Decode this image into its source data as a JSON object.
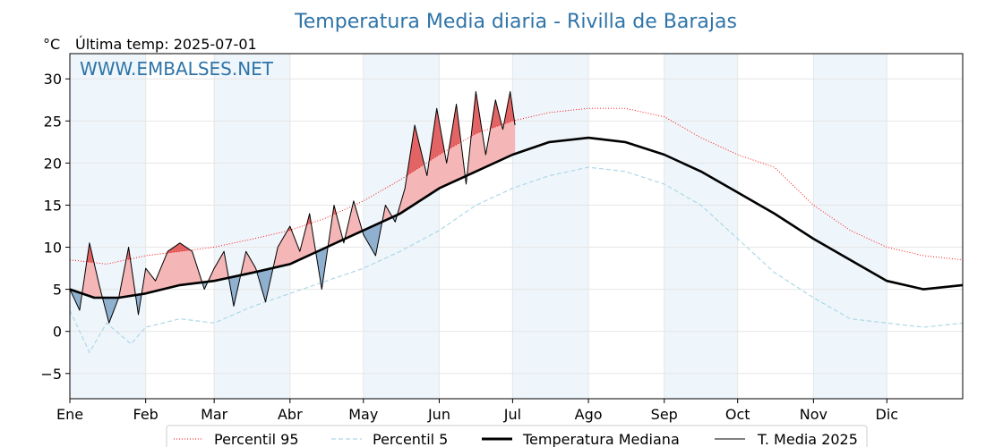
{
  "title": "Temperatura Media diaria - Rivilla de Barajas",
  "unit": "°C",
  "subtitle": "Última temp: 2025-07-01",
  "watermark": "WWW.EMBALSES.NET",
  "colors": {
    "title": "#2e74a8",
    "p95": "#ff0000",
    "p5": "#add8e6",
    "median": "#000000",
    "current": "#000000",
    "above_fill": "#f4b6b6",
    "above_fill_strong": "#e26464",
    "below_fill": "#8fb0cf",
    "month_band": "#eef5fb"
  },
  "chart_data": {
    "type": "line",
    "title": "Temperatura Media diaria - Rivilla de Barajas",
    "ylabel": "°C",
    "ylim": [
      -8,
      33
    ],
    "yticks": [
      -5,
      0,
      5,
      10,
      15,
      20,
      25,
      30
    ],
    "grid": true,
    "legend_position": "bottom",
    "x_label_days": [
      0,
      31,
      59,
      90,
      120,
      151,
      181,
      212,
      243,
      273,
      304,
      334
    ],
    "x_labels": [
      "Ene",
      "Feb",
      "Mar",
      "Abr",
      "May",
      "Jun",
      "Jul",
      "Ago",
      "Sep",
      "Oct",
      "Nov",
      "Dic"
    ],
    "x_range_days": [
      0,
      365
    ],
    "series": [
      {
        "name": "Percentil 95",
        "style": "dotted-red",
        "x": [
          0,
          15,
          31,
          45,
          59,
          75,
          90,
          105,
          120,
          135,
          151,
          166,
          181,
          196,
          212,
          227,
          243,
          258,
          273,
          288,
          304,
          319,
          334,
          349,
          365
        ],
        "values": [
          8.5,
          8.0,
          9.0,
          9.5,
          10.0,
          11.0,
          12.0,
          13.5,
          15.5,
          18.0,
          21.0,
          23.5,
          25.0,
          26.0,
          26.5,
          26.5,
          25.5,
          23.0,
          21.0,
          19.5,
          15.0,
          12.0,
          10.0,
          9.0,
          8.5
        ]
      },
      {
        "name": "Percentil 5",
        "style": "dashed-lightblue",
        "x": [
          0,
          8,
          15,
          25,
          31,
          45,
          59,
          75,
          90,
          105,
          120,
          135,
          151,
          166,
          181,
          196,
          212,
          227,
          243,
          258,
          273,
          288,
          304,
          319,
          334,
          349,
          365
        ],
        "values": [
          2.5,
          -2.5,
          1.0,
          -1.5,
          0.5,
          1.5,
          1.0,
          3.0,
          4.5,
          6.0,
          7.5,
          9.5,
          12.0,
          15.0,
          17.0,
          18.5,
          19.5,
          19.0,
          17.5,
          15.0,
          11.0,
          7.0,
          4.0,
          1.5,
          1.0,
          0.5,
          1.0
        ]
      },
      {
        "name": "Temperatura Mediana",
        "style": "thick-black",
        "x": [
          0,
          10,
          20,
          31,
          45,
          59,
          75,
          90,
          105,
          120,
          135,
          151,
          166,
          181,
          196,
          212,
          227,
          243,
          258,
          273,
          288,
          304,
          319,
          334,
          349,
          365
        ],
        "values": [
          5.0,
          4.0,
          4.0,
          4.5,
          5.5,
          6.0,
          7.0,
          8.0,
          10.0,
          12.0,
          14.0,
          17.0,
          19.0,
          21.0,
          22.5,
          23.0,
          22.5,
          21.0,
          19.0,
          16.5,
          14.0,
          11.0,
          8.5,
          6.0,
          5.0,
          5.5
        ]
      },
      {
        "name": "T. Media 2025",
        "style": "thin-black",
        "x": [
          0,
          4,
          8,
          12,
          16,
          20,
          24,
          28,
          31,
          35,
          40,
          45,
          50,
          55,
          59,
          63,
          67,
          72,
          76,
          80,
          85,
          90,
          94,
          98,
          103,
          108,
          112,
          116,
          120,
          125,
          129,
          133,
          137,
          141,
          146,
          150,
          154,
          158,
          162,
          166,
          170,
          174,
          177,
          180,
          182
        ],
        "values": [
          5.0,
          2.5,
          10.5,
          5.5,
          1.0,
          4.0,
          10.0,
          2.0,
          7.5,
          6.0,
          9.5,
          10.5,
          9.5,
          5.0,
          7.5,
          9.5,
          3.0,
          9.5,
          7.5,
          3.5,
          10.0,
          12.5,
          9.5,
          14.0,
          5.0,
          15.0,
          10.5,
          15.5,
          11.5,
          9.0,
          15.0,
          13.0,
          17.0,
          24.5,
          18.5,
          26.5,
          20.0,
          27.0,
          17.5,
          28.5,
          21.0,
          27.5,
          24.0,
          28.5,
          24.5
        ]
      }
    ]
  },
  "legend": [
    {
      "label": "Percentil 95"
    },
    {
      "label": "Percentil 5"
    },
    {
      "label": "Temperatura Mediana"
    },
    {
      "label": "T. Media 2025"
    }
  ]
}
